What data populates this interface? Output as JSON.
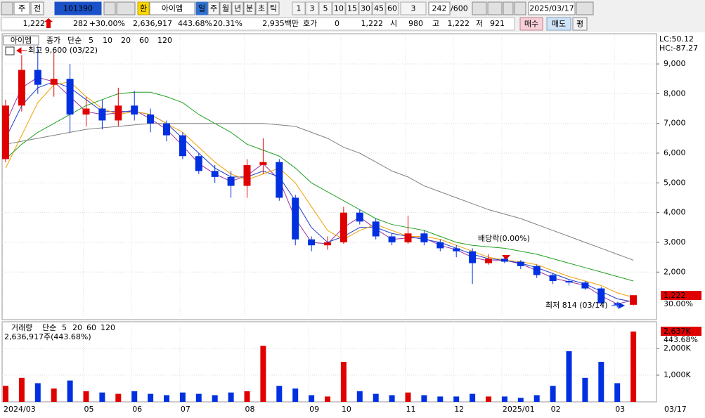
{
  "toolbar": {
    "period_type": "주",
    "market": "전",
    "code": "101390",
    "exchange": "환",
    "name": "아이엠",
    "periods": [
      "일",
      "주",
      "월",
      "년",
      "분",
      "초",
      "틱"
    ],
    "intervals": [
      "1",
      "3",
      "5",
      "10",
      "15",
      "30",
      "45",
      "60"
    ],
    "unit": "3",
    "count": "242",
    "max_count": "/600",
    "date": "2025/03/17"
  },
  "info_bar": {
    "price": "1,222",
    "change": "282",
    "change_rate": "+30.00%",
    "volume": "2,636,917",
    "volume_rate": "443.68%",
    "turnover": "20.31%",
    "amount": "2,935백만",
    "ask_label": "호가",
    "ask": "0",
    "bid": "1,222",
    "open_label": "시",
    "open": "980",
    "high_label": "고",
    "high": "1,222",
    "low_label": "저",
    "low": "921",
    "buy": "매수",
    "sell": "매도",
    "avg": "평"
  },
  "chart_data": [
    {
      "type": "candlestick",
      "legend": [
        "아이엠",
        "종가",
        "단순"
      ],
      "categories": [
        "2024/03",
        null,
        null,
        null,
        null,
        "05",
        null,
        null,
        "06",
        null,
        null,
        "07",
        null,
        null,
        null,
        "08",
        null,
        null,
        null,
        "09",
        null,
        "10",
        null,
        null,
        null,
        "11",
        null,
        null,
        "12",
        null,
        null,
        "2025/01",
        null,
        null,
        "02",
        null,
        null,
        null,
        "03",
        null
      ],
      "x_end_label": "03/17",
      "open": [
        5800,
        7600,
        8800,
        8300,
        8500,
        7300,
        7500,
        7100,
        7600,
        7300,
        7000,
        6600,
        5900,
        5400,
        5200,
        4900,
        5600,
        5700,
        4500,
        3100,
        2900,
        3000,
        4000,
        3700,
        3200,
        3000,
        3300,
        3000,
        2800,
        2700,
        2300,
        2450,
        2350,
        2200,
        1900,
        1700,
        1650,
        1450,
        950,
        900
      ],
      "high": [
        7800,
        9300,
        9600,
        9400,
        9000,
        7900,
        7800,
        8200,
        8100,
        7500,
        7100,
        6700,
        6000,
        5600,
        5400,
        5800,
        6500,
        5800,
        4600,
        3200,
        3200,
        4200,
        4100,
        3800,
        3300,
        3900,
        3400,
        3100,
        2900,
        2800,
        2600,
        2500,
        2400,
        2250,
        1950,
        1750,
        1700,
        1500,
        1000,
        1222
      ],
      "low": [
        5700,
        7400,
        8000,
        7900,
        6700,
        6900,
        6800,
        6900,
        7100,
        6700,
        6400,
        5800,
        5300,
        5000,
        4500,
        4500,
        5300,
        4400,
        2900,
        2700,
        2750,
        2950,
        3600,
        3100,
        2900,
        2950,
        2900,
        2700,
        2500,
        1600,
        2250,
        2300,
        2100,
        1800,
        1600,
        1550,
        1400,
        900,
        814,
        880
      ],
      "close": [
        7600,
        8800,
        8300,
        8500,
        7300,
        7500,
        7100,
        7600,
        7300,
        7000,
        6600,
        5900,
        5400,
        5200,
        4900,
        5600,
        5700,
        4500,
        3100,
        2900,
        3000,
        4000,
        3700,
        3200,
        3000,
        3300,
        3000,
        2800,
        2700,
        2300,
        2450,
        2350,
        2200,
        1900,
        1700,
        1650,
        1450,
        950,
        900,
        1222
      ],
      "colors": {
        "up": "#e00000",
        "down": "#0030e0"
      },
      "series": [
        {
          "name": "5",
          "color": "#9b30a0",
          "values": [
            7000,
            8200,
            8550,
            8400,
            7900,
            7400,
            7300,
            7350,
            7450,
            7150,
            6800,
            6250,
            5650,
            5300,
            5050,
            5250,
            5650,
            5100,
            3800,
            3000,
            2950,
            3500,
            3850,
            3450,
            3100,
            3150,
            3150,
            2900,
            2750,
            2500,
            2375,
            2400,
            2275,
            2050,
            1800,
            1675,
            1550,
            1200,
            925,
            1060
          ]
        },
        {
          "name": "10",
          "color": "#1e3cc8",
          "values": [
            6500,
            7600,
            8200,
            8400,
            8200,
            7800,
            7400,
            7400,
            7400,
            7300,
            7000,
            6500,
            6000,
            5500,
            5200,
            5200,
            5400,
            5200,
            4400,
            3500,
            3000,
            3200,
            3500,
            3500,
            3300,
            3200,
            3100,
            3000,
            2800,
            2600,
            2450,
            2400,
            2300,
            2150,
            1950,
            1750,
            1600,
            1350,
            1100,
            1000
          ]
        },
        {
          "name": "20",
          "color": "#f0a000",
          "values": [
            5500,
            6600,
            7700,
            8300,
            8400,
            7900,
            7500,
            7300,
            7400,
            7300,
            7000,
            6700,
            6200,
            5700,
            5300,
            5100,
            5300,
            5500,
            5000,
            4200,
            3400,
            3100,
            3400,
            3600,
            3400,
            3200,
            3200,
            3100,
            2900,
            2700,
            2500,
            2400,
            2350,
            2250,
            2050,
            1850,
            1700,
            1550,
            1300,
            1150
          ]
        },
        {
          "name": "60",
          "color": "#20a020",
          "values": [
            5800,
            6300,
            6700,
            7000,
            7300,
            7600,
            7800,
            8000,
            8050,
            8050,
            7900,
            7700,
            7300,
            7000,
            6700,
            6300,
            6100,
            5900,
            5500,
            5000,
            4700,
            4400,
            4100,
            3800,
            3600,
            3500,
            3400,
            3200,
            3000,
            2900,
            2850,
            2800,
            2700,
            2600,
            2450,
            2300,
            2150,
            2000,
            1850,
            1700
          ]
        },
        {
          "name": "120",
          "color": "#808080",
          "values": [
            6300,
            6400,
            6500,
            6600,
            6700,
            6800,
            6850,
            6900,
            6950,
            7000,
            7000,
            7000,
            7000,
            7000,
            7000,
            7000,
            7000,
            6950,
            6900,
            6700,
            6500,
            6200,
            6000,
            5700,
            5400,
            5200,
            4900,
            4700,
            4500,
            4300,
            4100,
            3950,
            3800,
            3600,
            3400,
            3200,
            3000,
            2800,
            2600,
            2400
          ]
        }
      ],
      "ylim": [
        400,
        9970
      ],
      "yticks": [
        {
          "value": 2000,
          "label": "2,000"
        },
        {
          "value": 3000,
          "label": "3,000"
        },
        {
          "value": 4000,
          "label": "4,000"
        },
        {
          "value": 5000,
          "label": "5,000"
        },
        {
          "value": 6000,
          "label": "6,000"
        },
        {
          "value": 7000,
          "label": "7,000"
        },
        {
          "value": 8000,
          "label": "8,000"
        },
        {
          "value": 9000,
          "label": "9,000"
        }
      ],
      "grid": true,
      "annotations": [
        "최고 9,600 (03/22)",
        "최저 814 (03/14)",
        "배당락(0.00%)"
      ],
      "indicators": [
        "LC:50.12",
        "HC:-87.27"
      ],
      "current_label": "1,222",
      "change_label": "30.00%"
    },
    {
      "type": "bar",
      "legend": [
        "거래량",
        "단순",
        "5",
        "20",
        "60",
        "120"
      ],
      "values": [
        600000,
        900000,
        700000,
        500000,
        800000,
        400000,
        350000,
        300000,
        400000,
        300000,
        250000,
        350000,
        300000,
        250000,
        350000,
        400000,
        2100000,
        600000,
        500000,
        250000,
        200000,
        1500000,
        400000,
        300000,
        250000,
        350000,
        250000,
        200000,
        200000,
        300000,
        200000,
        200000,
        150000,
        250000,
        600000,
        1900000,
        900000,
        1500000,
        700000,
        2636917
      ],
      "ylim": [
        0,
        2950000
      ],
      "yticks": [
        {
          "value": 1000000,
          "label": "1,000K"
        },
        {
          "value": 2000000,
          "label": "2,000K"
        }
      ],
      "summary": "2,636,917주(443.68%)",
      "current_label": "2,637K",
      "change_label": "443.68%"
    }
  ]
}
